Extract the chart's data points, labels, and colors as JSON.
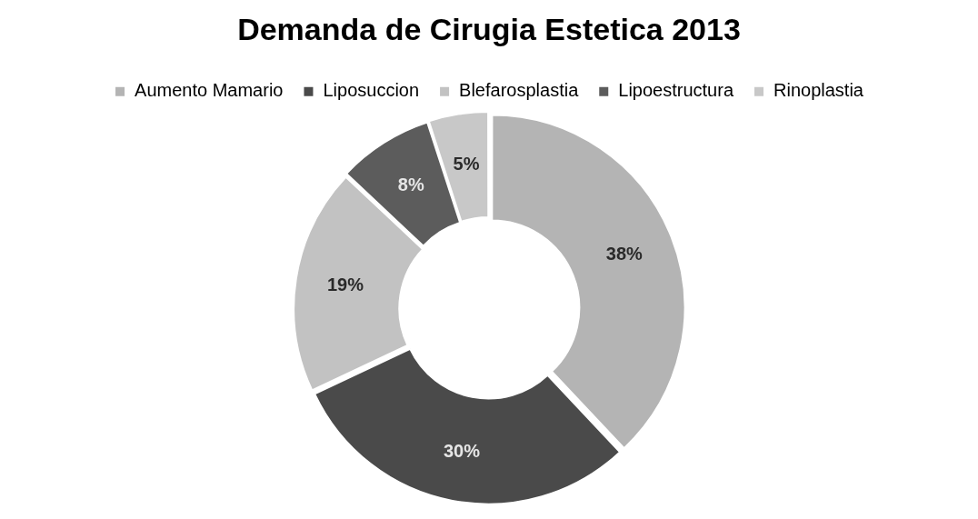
{
  "chart_data": {
    "type": "donut",
    "title": "Demanda de Cirugia Estetica 2013",
    "categories": [
      "Aumento Mamario",
      "Liposuccion",
      "Blefarosplastia",
      "Lipoestructura",
      "Rinoplastia"
    ],
    "values": [
      38,
      30,
      19,
      8,
      5
    ],
    "value_labels": [
      "38%",
      "30%",
      "19%",
      "8%",
      "5%"
    ],
    "colors": [
      "#b4b4b4",
      "#4a4a4a",
      "#c2c2c2",
      "#5c5c5c",
      "#c8c8c8"
    ],
    "legend": "top"
  }
}
